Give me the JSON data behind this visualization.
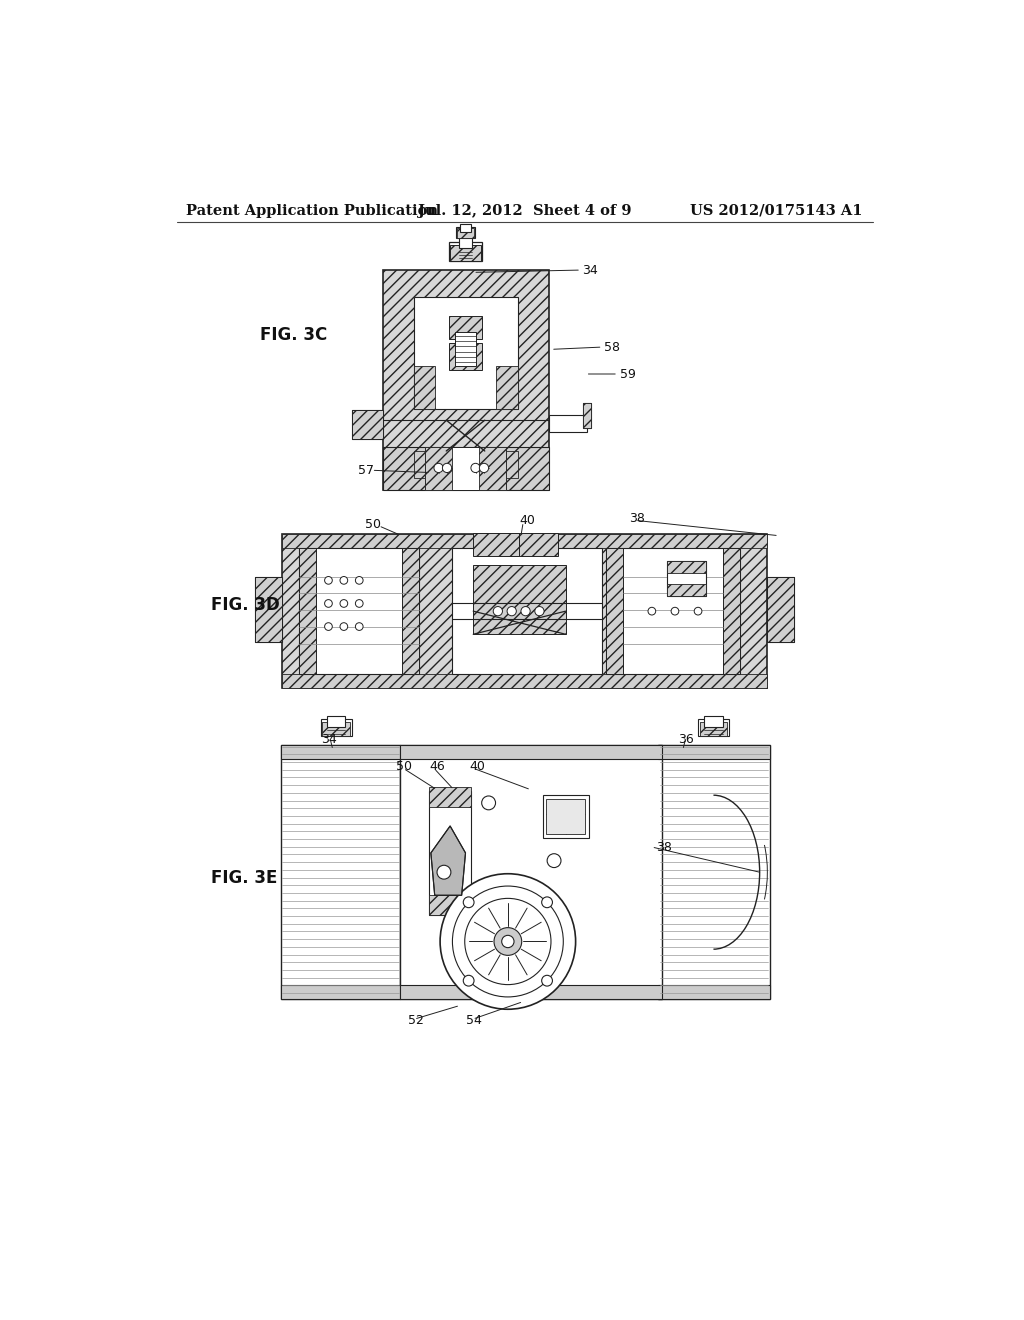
{
  "header_left": "Patent Application Publication",
  "header_center": "Jul. 12, 2012  Sheet 4 of 9",
  "header_right": "US 2012/0175143 A1",
  "background": "#ffffff",
  "header_fontsize": 10.5,
  "fig_label_fontsize": 12,
  "callout_fontsize": 9
}
